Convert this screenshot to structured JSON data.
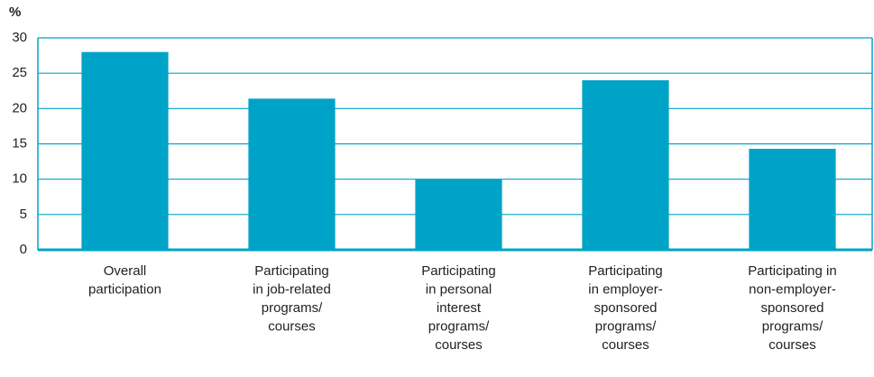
{
  "chart_data": {
    "type": "bar",
    "y_label": "%",
    "categories": [
      "Overall\nparticipation",
      "Participating\nin job-related\nprograms/\ncourses",
      "Participating\nin personal\ninterest\nprograms/\ncourses",
      "Participating\nin employer-\nsponsored\nprograms/\ncourses",
      "Participating in\nnon-employer-\nsponsored\nprograms/\ncourses"
    ],
    "values": [
      28,
      21.4,
      10,
      24,
      14.3
    ],
    "color": "#00a3c8",
    "ylim": [
      0,
      30
    ],
    "yticks": [
      0,
      5,
      10,
      15,
      20,
      25,
      30
    ],
    "grid": true
  }
}
